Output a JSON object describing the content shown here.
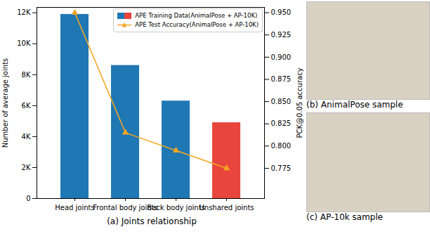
{
  "chart_data": {
    "type": "bar",
    "caption": "(a) Joints relationship",
    "categories": [
      "Head joints",
      "Frontal body joints",
      "Back body joints",
      "Unshared joints"
    ],
    "series": [
      {
        "name": "APE Training Data(AnimalPose + AP-10K)",
        "type": "bar",
        "colors": [
          "#1f77b4",
          "#1f77b4",
          "#1f77b4",
          "#e8453c"
        ],
        "values": [
          11900,
          8600,
          6300,
          4900
        ]
      },
      {
        "name": "APE Test Accuracy(AnimalPose + AP-10K)",
        "type": "line",
        "axis": "y2",
        "color": "#f5a623",
        "marker": "triangle",
        "line_style": "solid",
        "values": [
          0.95,
          0.815,
          0.795,
          0.775
        ]
      }
    ],
    "y_label": "Number of average joints",
    "y2_label": "PCK@0.05 accuracy",
    "ylim": [
      0,
      12350
    ],
    "yticks": [
      0,
      {
        "value": 2000,
        "label": "2K"
      },
      {
        "value": 4000,
        "label": "4K"
      },
      {
        "value": 6000,
        "label": "6K"
      },
      {
        "value": 8000,
        "label": "8K"
      },
      {
        "value": 10000,
        "label": "10K"
      },
      {
        "value": 12000,
        "label": "12K"
      }
    ],
    "y2lim": [
      0.741,
      0.956
    ],
    "y2ticks": [
      0.775,
      {
        "value": 0.8,
        "label": "0.800"
      },
      0.825,
      {
        "value": 0.85,
        "label": "0.850"
      },
      0.875,
      {
        "value": 0.9,
        "label": "0.900"
      },
      0.925,
      {
        "value": 0.95,
        "label": "0.950"
      }
    ],
    "legend": "upper right",
    "grid": false
  },
  "panels": [
    {
      "caption": "(b) AnimalPose sample"
    },
    {
      "caption": "(c) AP-10k sample"
    }
  ]
}
